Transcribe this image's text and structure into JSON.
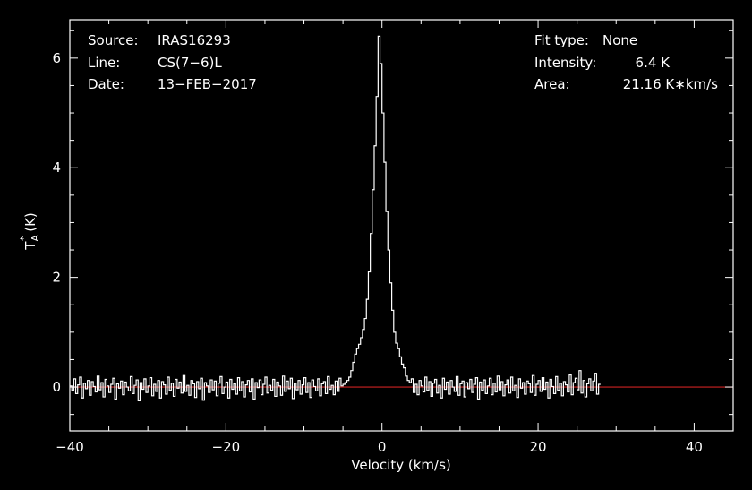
{
  "header": {
    "source_label": "Source:",
    "source_value": "IRAS16293",
    "line_label": "Line:",
    "line_value": "CS(7−6)L",
    "date_label": "Date:",
    "date_value": "13−FEB−2017",
    "fit_label": "Fit type:",
    "fit_value": "None",
    "intensity_label": "Intensity:",
    "intensity_value": "6.4 K",
    "area_label": "Area:",
    "area_value": "21.16 K∗km/s"
  },
  "chart_data": {
    "type": "line",
    "xlabel": "Velocity (km/s)",
    "ylabel_main": "T",
    "ylabel_sup": "*",
    "ylabel_sub": "A",
    "ylabel_unit": " (K)",
    "xlim": [
      -40,
      45
    ],
    "ylim": [
      -0.8,
      6.7
    ],
    "x_ticks": [
      -40,
      -20,
      0,
      20,
      40
    ],
    "x_tick_labels": [
      "−40",
      "−20",
      "0",
      "20",
      "40"
    ],
    "y_ticks": [
      0,
      2,
      4,
      6
    ],
    "y_tick_labels": [
      "0",
      "2",
      "4",
      "6"
    ],
    "grid": false,
    "colors": {
      "background": "#000000",
      "axes": "#ffffff",
      "spectrum": "#ffffff",
      "baseline": "#cc2222"
    },
    "series": [
      {
        "style": "histogram",
        "x_start": -40,
        "x_step": 0.25,
        "values": [
          0.02,
          -0.06,
          0.15,
          -0.12,
          0.04,
          0.18,
          -0.2,
          0.07,
          -0.03,
          0.12,
          -0.15,
          0.1,
          0.01,
          -0.09,
          0.2,
          -0.05,
          0.08,
          -0.18,
          0.14,
          0.02,
          -0.1,
          0.05,
          0.16,
          -0.22,
          0.06,
          -0.02,
          0.11,
          -0.14,
          0.09,
          0.0,
          -0.07,
          0.19,
          -0.12,
          0.03,
          0.13,
          -0.25,
          0.08,
          -0.04,
          0.15,
          -0.1,
          0.02,
          0.17,
          -0.16,
          0.05,
          -0.08,
          0.12,
          -0.2,
          0.1,
          0.04,
          -0.13,
          0.18,
          -0.06,
          0.07,
          -0.17,
          0.14,
          -0.02,
          0.09,
          -0.11,
          0.21,
          -0.08,
          0.03,
          -0.15,
          0.12,
          0.06,
          -0.19,
          0.1,
          -0.03,
          0.16,
          -0.24,
          0.08,
          0.02,
          -0.1,
          0.13,
          -0.05,
          0.11,
          -0.16,
          0.07,
          0.19,
          -0.12,
          0.0,
          0.09,
          -0.2,
          0.14,
          -0.04,
          0.06,
          -0.13,
          0.17,
          -0.07,
          0.1,
          -0.18,
          0.04,
          0.12,
          -0.09,
          0.15,
          -0.22,
          0.08,
          -0.01,
          0.13,
          -0.14,
          0.05,
          0.18,
          -0.11,
          0.03,
          -0.06,
          0.14,
          -0.17,
          0.09,
          0.02,
          -0.15,
          0.2,
          -0.08,
          0.11,
          -0.03,
          0.16,
          -0.21,
          0.07,
          -0.05,
          0.12,
          -0.13,
          0.04,
          0.17,
          -0.1,
          0.08,
          -0.19,
          0.13,
          0.01,
          -0.07,
          0.15,
          -0.16,
          0.06,
          0.1,
          -0.12,
          0.19,
          -0.04,
          0.03,
          -0.14,
          0.11,
          -0.08,
          0.16,
          0.02,
          0.05,
          0.08,
          0.12,
          0.18,
          0.3,
          0.45,
          0.6,
          0.7,
          0.78,
          0.9,
          1.05,
          1.25,
          1.6,
          2.1,
          2.8,
          3.6,
          4.4,
          5.3,
          6.4,
          5.9,
          5.0,
          4.1,
          3.2,
          2.5,
          1.9,
          1.4,
          1.0,
          0.8,
          0.7,
          0.55,
          0.42,
          0.35,
          0.2,
          0.12,
          0.08,
          0.15,
          -0.1,
          0.05,
          -0.14,
          0.12,
          0.02,
          -0.09,
          0.18,
          -0.06,
          0.1,
          -0.17,
          0.07,
          0.14,
          -0.11,
          0.03,
          -0.2,
          0.16,
          -0.04,
          0.09,
          -0.13,
          0.12,
          0.0,
          -0.08,
          0.19,
          -0.15,
          0.06,
          0.11,
          -0.18,
          0.08,
          -0.03,
          0.14,
          -0.1,
          0.05,
          0.17,
          -0.22,
          0.09,
          -0.06,
          0.13,
          -0.12,
          0.02,
          0.16,
          -0.14,
          0.07,
          -0.09,
          0.2,
          -0.05,
          0.1,
          -0.16,
          0.04,
          0.13,
          -0.11,
          0.18,
          -0.07,
          0.03,
          -0.19,
          0.15,
          -0.02,
          0.08,
          -0.13,
          0.11,
          0.06,
          -0.1,
          0.21,
          -0.15,
          0.05,
          0.12,
          -0.08,
          0.17,
          -0.04,
          0.09,
          -0.2,
          0.14,
          0.01,
          -0.12,
          0.19,
          -0.06,
          0.07,
          -0.16,
          0.1,
          0.04,
          -0.09,
          0.22,
          -0.14,
          0.08,
          0.16,
          -0.05,
          0.3,
          -0.11,
          0.12,
          -0.18,
          0.06,
          0.15,
          -0.07,
          0.11,
          0.25,
          -0.13,
          0.05
        ]
      }
    ]
  }
}
